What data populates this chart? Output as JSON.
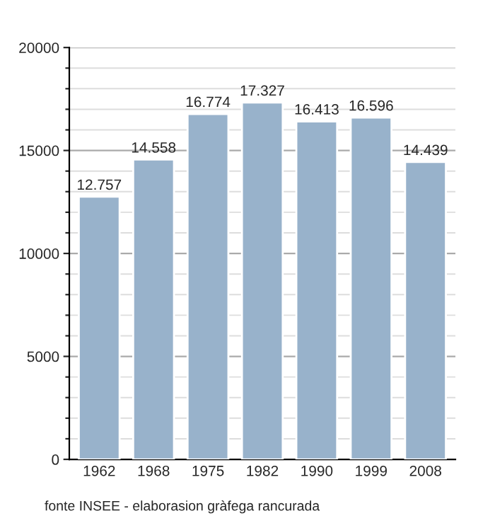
{
  "chart_data": {
    "type": "bar",
    "categories": [
      "1962",
      "1968",
      "1975",
      "1982",
      "1990",
      "1999",
      "2008"
    ],
    "values": [
      12757,
      14558,
      16774,
      17327,
      16413,
      16596,
      14439
    ],
    "value_labels": [
      "12.757",
      "14.558",
      "16.774",
      "17.327",
      "16.413",
      "16.596",
      "14.439"
    ],
    "color": "#98b2cb",
    "ylim": [
      0,
      20000
    ],
    "yticks": [
      0,
      5000,
      10000,
      15000,
      20000
    ],
    "grid": "y",
    "annotations": [
      "fonte INSEE - elaborasion gràfega rancurada"
    ]
  }
}
